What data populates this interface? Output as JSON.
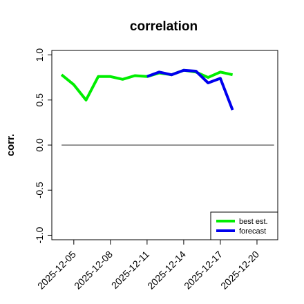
{
  "chart_data": {
    "type": "line",
    "title": "correlation",
    "ylabel": "corr.",
    "xlabel": "",
    "ylim": [
      -1.05,
      1.05
    ],
    "y_ticks": [
      -1.0,
      -0.5,
      0.0,
      0.5,
      1.0
    ],
    "y_tick_labels": [
      "-1.0",
      "-0.5",
      "0.0",
      "0.5",
      "1.0"
    ],
    "x_tick_labels": [
      "2025-12-05",
      "2025-12-08",
      "2025-12-11",
      "2025-12-14",
      "2025-12-17",
      "2025-12-20"
    ],
    "x_tick_days": [
      5,
      8,
      11,
      14,
      17,
      20
    ],
    "x_tick_colors": [
      "#000000",
      "#000000",
      "#228B22",
      "#000000",
      "#000000",
      "#000000"
    ],
    "xlim_days": [
      3.2,
      21.7
    ],
    "grid": false,
    "legend_position": "bottom-right",
    "reference_line": {
      "y": 0.0,
      "color": "#555555"
    },
    "series": [
      {
        "name": "best est.",
        "color": "#00ee00",
        "x_days": [
          4,
          5,
          6,
          7,
          8,
          9,
          10,
          11,
          12,
          13,
          14,
          15,
          16,
          17,
          18
        ],
        "values": [
          0.78,
          0.67,
          0.5,
          0.76,
          0.76,
          0.73,
          0.77,
          0.76,
          0.8,
          0.78,
          0.83,
          0.81,
          0.75,
          0.81,
          0.78
        ]
      },
      {
        "name": "forecast",
        "color": "#0000ee",
        "x_days": [
          11,
          12,
          13,
          14,
          15,
          16,
          17,
          18
        ],
        "values": [
          0.76,
          0.81,
          0.78,
          0.83,
          0.82,
          0.69,
          0.74,
          0.39
        ]
      }
    ]
  }
}
